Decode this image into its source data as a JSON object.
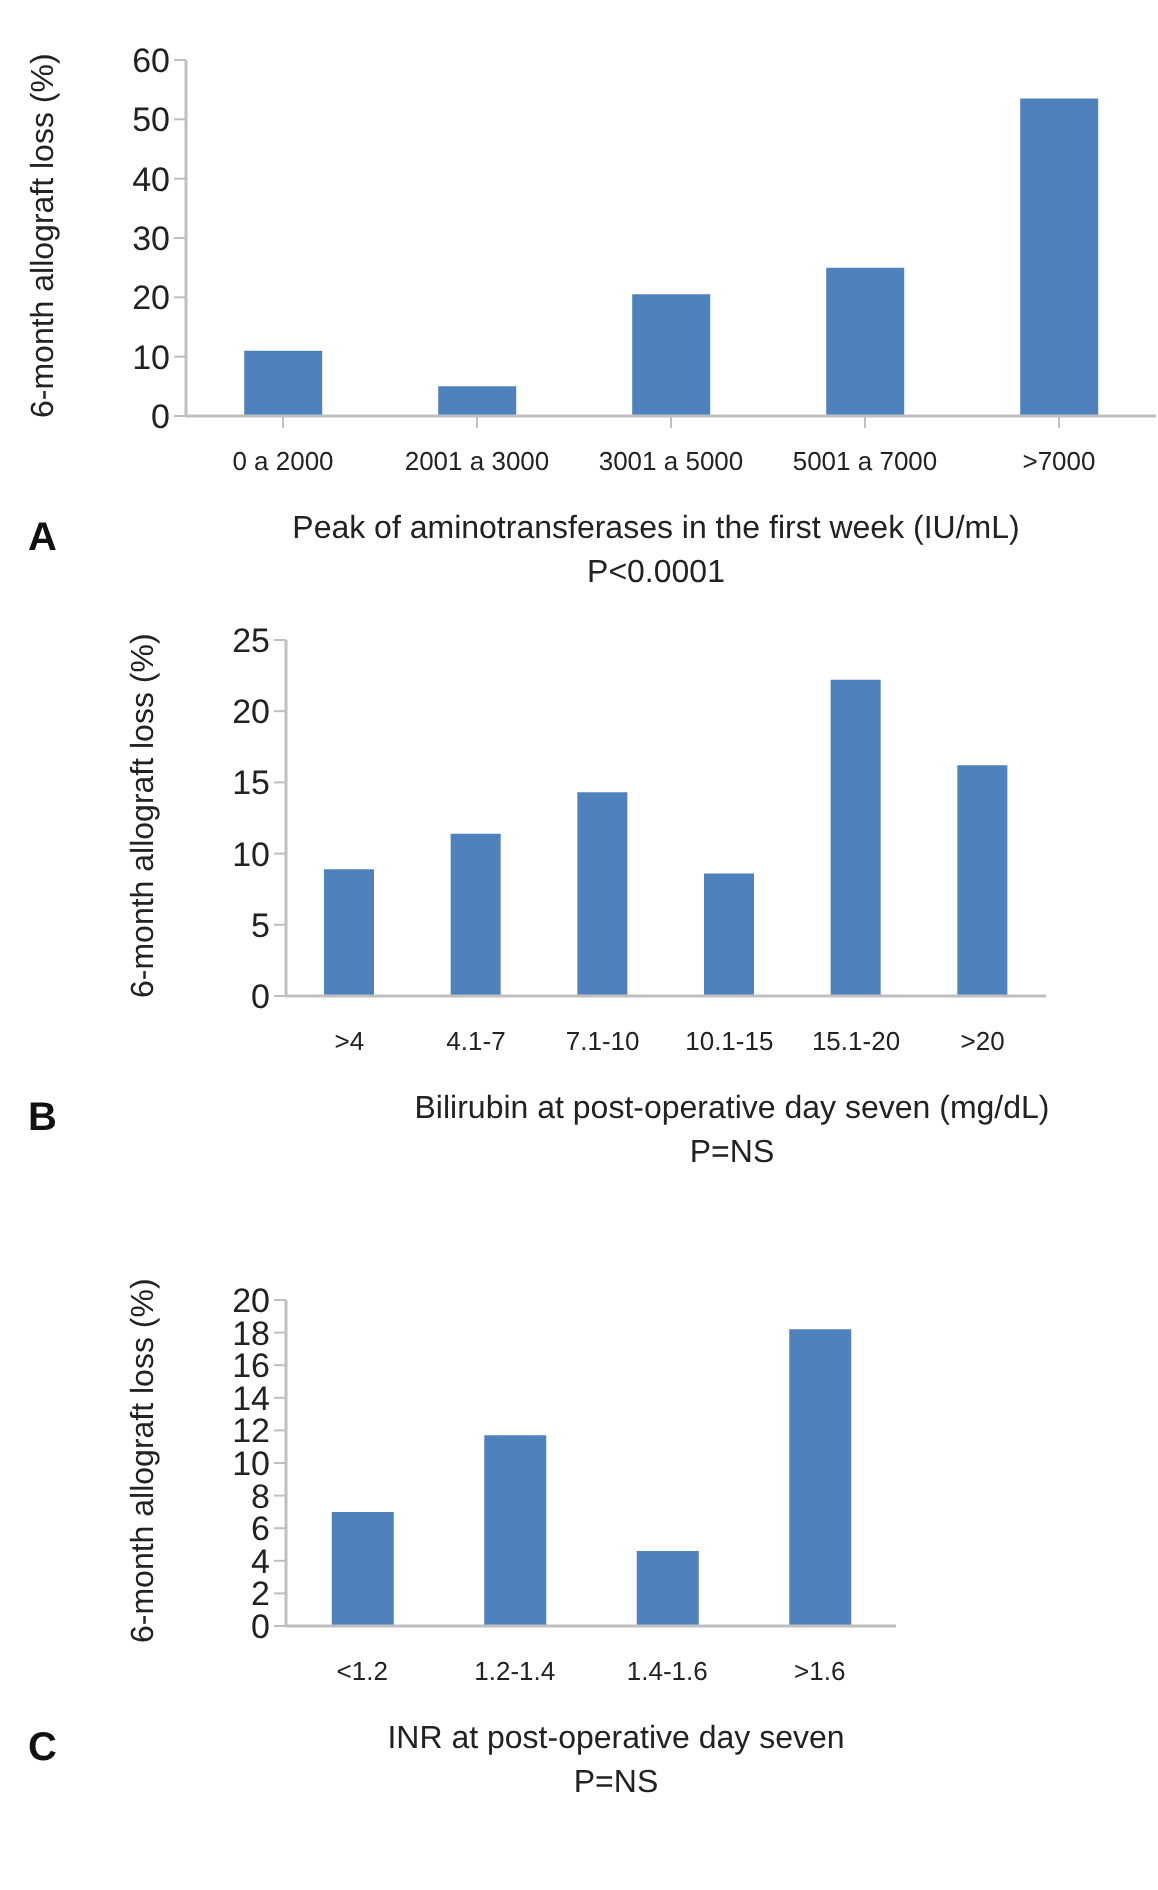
{
  "chart_data": [
    {
      "type": "bar",
      "categories": [
        "0 a 2000",
        "2001 a 3000",
        "3001 a 5000",
        "5001 a 7000",
        ">7000"
      ],
      "values": [
        11,
        5,
        20.5,
        25,
        53.5
      ],
      "color": "#4f81bd",
      "ylim": [
        0,
        60
      ],
      "yticks": [
        0,
        10,
        20,
        30,
        40,
        50,
        60
      ],
      "ylabel": "6-month allograft loss (%)",
      "xlabel": "Peak of aminotransferases in the first week (IU/mL)",
      "annotations": [
        "A",
        "P<0.0001"
      ],
      "grid": false
    },
    {
      "type": "bar",
      "categories": [
        ">4",
        "4.1-7",
        "7.1-10",
        "10.1-15",
        "15.1-20",
        ">20"
      ],
      "values": [
        8.9,
        11.4,
        14.3,
        8.6,
        22.2,
        16.2
      ],
      "color": "#4f81bd",
      "ylim": [
        0,
        25
      ],
      "yticks": [
        0,
        5,
        10,
        15,
        20,
        25
      ],
      "ylabel": "6-month allograft loss (%)",
      "xlabel": "Bilirubin at post-operative day seven (mg/dL)",
      "annotations": [
        "B",
        "P=NS"
      ],
      "grid": false
    },
    {
      "type": "bar",
      "categories": [
        "<1.2",
        "1.2-1.4",
        "1.4-1.6",
        ">1.6"
      ],
      "values": [
        7,
        11.7,
        4.6,
        18.2
      ],
      "color": "#4f81bd",
      "ylim": [
        0,
        20
      ],
      "yticks": [
        0,
        2,
        4,
        6,
        8,
        10,
        12,
        14,
        16,
        18,
        20
      ],
      "ylabel": "6-month allograft loss (%)",
      "xlabel": "INR at post-operative day seven",
      "annotations": [
        "C",
        "P=NS"
      ],
      "grid": false
    }
  ]
}
